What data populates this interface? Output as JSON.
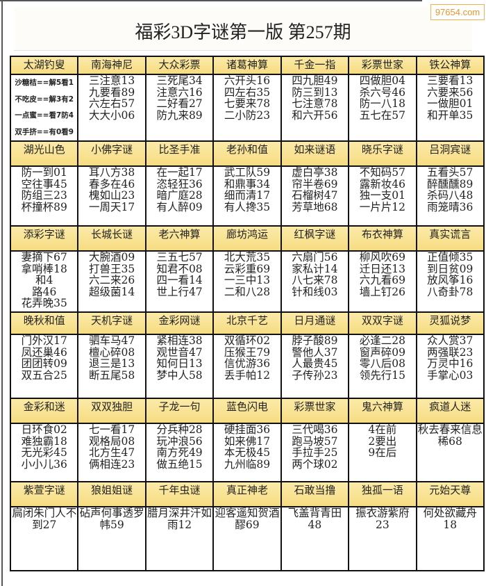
{
  "watermark": "97654.com",
  "title": "福彩3D字谜第一版  第257期",
  "colors": {
    "header_bg": "#f8e28e",
    "border": "#111111",
    "watermark": "#e8962c"
  },
  "rows": [
    {
      "headers": [
        "太湖钓叟",
        "南海神尼",
        "大众彩票",
        "诸葛神算",
        "千金一指",
        "彩票世家",
        "铁公神算"
      ],
      "cells": [
        [
          "沙糖桔==解5看1",
          "不吃皮==解3有2",
          "一点蜜==看7防4",
          "双手挤==有0看9"
        ],
        [
          "三注意13",
          "九要看89",
          "六左右57",
          "大大小06"
        ],
        [
          "三死尾34",
          "注意六16",
          "二好看27",
          "防九来89"
        ],
        [
          "六开头16",
          "四左右35",
          "七要来78",
          "二小防23"
        ],
        [
          "四九胆49",
          "防三到13",
          "七注意78",
          "和六开56"
        ],
        [
          "四做胆04",
          "杀六号46",
          "防一八18",
          "五七在57"
        ],
        [
          "三要看13",
          "六要来56",
          "一做胆01",
          "和开单35"
        ]
      ]
    },
    {
      "headers": [
        "湖光山色",
        "小佛字谜",
        "比圣手准",
        "老孙和值",
        "如来谜语",
        "晓乐字谜",
        "吕洞宾谜"
      ],
      "cells": [
        [
          "防一到01",
          "空往事45",
          "防组三23",
          "杯撞杯89"
        ],
        [
          "耳八方38",
          "春多在46",
          "槐如山23",
          "一周天17"
        ],
        [
          "在一起17",
          "恣轻狂36",
          "暗广庭28",
          "有人醉09"
        ],
        [
          "武工队59",
          "和鼎事34",
          "细而清17",
          "有人搀35"
        ],
        [
          "虚白亭38",
          "帘半卷69",
          "石榴树47",
          "芳草地68"
        ],
        [
          "不知码57",
          "露新妆46",
          "独一支01",
          "一片片12"
        ],
        [
          "五看头57",
          "醉醺醺89",
          "杀码八48",
          "雨笼晴36"
        ]
      ]
    },
    {
      "headers": [
        "添彩字谜",
        "长城长谜",
        "老六神算",
        "廊坊鸿运",
        "红枫字谜",
        "布衣神算",
        "真实谎言"
      ],
      "cells": [
        [
          "妻摘下67",
          "拿哨棒18",
          "和4",
          "路46",
          "花弄晚35"
        ],
        [
          "大腕酒09",
          "打兽王35",
          "六二来26",
          "超级菌14"
        ],
        [
          "三五七57",
          "知君不08",
          "四一看14",
          "世上行47"
        ],
        [
          "北大荒35",
          "云彩重69",
          "一三中13",
          "二和八28"
        ],
        [
          "六扇门56",
          "家私计14",
          "八七来78",
          "针和线03"
        ],
        [
          "柳风吹69",
          "迁日还13",
          "六九看69",
          "墙上钉26"
        ],
        [
          "正值倾35",
          "到日贫09",
          "放风筝16",
          "八奇卦78"
        ]
      ]
    },
    {
      "headers": [
        "晚秋和值",
        "天机字谜",
        "金彩网谜",
        "北京千艺",
        "日月通谜",
        "双双字谜",
        "灵狐说梦"
      ],
      "cells": [
        [
          "门外汉17",
          "凤还巢46",
          "团团转09",
          "双五合25"
        ],
        [
          "驷车马47",
          "檀心碎08",
          "退三是13",
          "断五尾58"
        ],
        [
          "紧相连38",
          "观世音47",
          "知何日13",
          "梦中人58"
        ],
        [
          "双循环02",
          "压猴王79",
          "信优游36",
          "丢手帕12"
        ],
        [
          "脖子酸89",
          "警他人37",
          "人最贵45",
          "子传孙23"
        ],
        [
          "必逢二28",
          "窗声碎09",
          "零八后08",
          "领先行15"
        ],
        [
          "众人赏37",
          "两强联23",
          "万灵中16",
          "手掌心03"
        ]
      ]
    },
    {
      "headers": [
        "金彩和迷",
        "双双独胆",
        "子龙一句",
        "蓝色闪电",
        "彩票世家",
        "鬼六神算",
        "疯道人迷"
      ],
      "cells": [
        [
          "日环食02",
          "难独霸18",
          "无光彩45",
          "小小儿36"
        ],
        [
          "七一看17",
          "观格局08",
          "北方生47",
          "俩相连23"
        ],
        [
          "分兵种28",
          "玩冲浪56",
          "南方死49",
          "做五绝15"
        ],
        [
          "硬挂面36",
          "如来佛17",
          "本无极45",
          "九州临89"
        ],
        [
          "三代喝36",
          "跑马坡57",
          "手拉手25",
          "两个球02"
        ],
        [
          "4在前",
          "2要出",
          "9在后"
        ],
        [
          "秋去春来信息稀68"
        ]
      ]
    },
    {
      "headers": [
        "紫萱字谜",
        "狼姐姐谜",
        "千年虫谜",
        "真正神老",
        "石敢当撸",
        "独孤一语",
        "元始天尊"
      ],
      "cells": [
        [
          "扃闭朱门人不到27"
        ],
        [
          "砧声何事透罗帏59"
        ],
        [
          "腊月深井汗如雨12"
        ],
        [
          "迎客遥知贺酒醪69"
        ],
        [
          "飞盖背青田48"
        ],
        [
          "振衣游紫府23"
        ],
        [
          "何处欲藏舟18"
        ]
      ]
    }
  ]
}
